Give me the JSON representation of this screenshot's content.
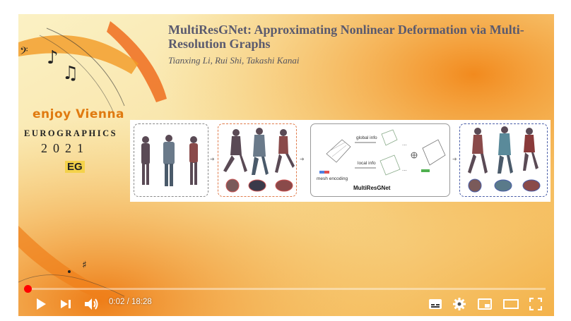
{
  "slide": {
    "title": "MultiResGNet: Approximating Nonlinear Deformation via Multi-Resolution Graphs",
    "authors": "Tianxing Li, Rui Shi, Takashi Kanai",
    "brand_tagline": "enjoy Vienna",
    "brand_event": "EUROGRAPHICS",
    "brand_year": "2021",
    "brand_logo": "EG"
  },
  "figure": {
    "global_info": "global info",
    "local_info": "local info",
    "mesh_encoding": "mesh encoding",
    "network_name": "MultiResGNet"
  },
  "player": {
    "progress_fraction": 0.0018,
    "current_time": "0:02",
    "separator": "/",
    "duration": "18:28"
  },
  "icons": [
    "play-icon",
    "next-icon",
    "volume-icon",
    "subtitles-icon",
    "settings-icon",
    "miniplayer-icon",
    "theater-icon",
    "fullscreen-icon"
  ],
  "colors": {
    "progress": "#ff0000",
    "accent_orange": "#f08a1c"
  }
}
